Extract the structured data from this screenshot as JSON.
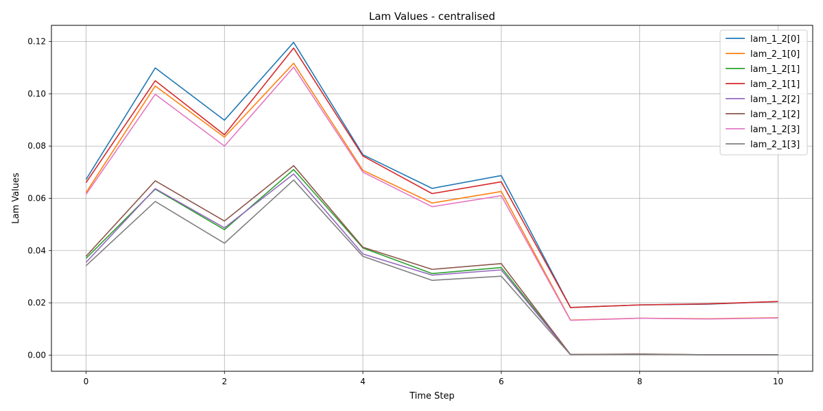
{
  "chart_data": {
    "type": "line",
    "title": "Lam Values - centralised",
    "xlabel": "Time Step",
    "ylabel": "Lam Values",
    "xlim": [
      -0.5,
      10.5
    ],
    "ylim": [
      -0.0062,
      0.1262
    ],
    "xticks": [
      0,
      2,
      4,
      6,
      8,
      10
    ],
    "yticks": [
      0.0,
      0.02,
      0.04,
      0.06,
      0.08,
      0.1,
      0.12
    ],
    "ytick_labels": [
      "0.00",
      "0.02",
      "0.04",
      "0.06",
      "0.08",
      "0.10",
      "0.12"
    ],
    "grid": true,
    "legend_position": "top-right",
    "x": [
      0,
      1,
      2,
      3,
      4,
      5,
      6,
      7,
      8,
      9,
      10
    ],
    "series": [
      {
        "name": "lam_1_2[0]",
        "color": "#1f77b4",
        "values": [
          0.0672,
          0.1099,
          0.0899,
          0.1197,
          0.0767,
          0.0638,
          0.0687,
          0.0182,
          0.0192,
          0.0195,
          0.0205
        ]
      },
      {
        "name": "lam_2_1[0]",
        "color": "#ff7f0e",
        "values": [
          0.0622,
          0.103,
          0.0834,
          0.1117,
          0.0707,
          0.0582,
          0.0626,
          0.0134,
          0.0141,
          0.0139,
          0.0143
        ]
      },
      {
        "name": "lam_1_2[1]",
        "color": "#2ca02c",
        "values": [
          0.037,
          0.0635,
          0.048,
          0.071,
          0.041,
          0.0312,
          0.0335,
          0.0002,
          0.0003,
          0.0001,
          0.0001
        ]
      },
      {
        "name": "lam_2_1[1]",
        "color": "#d62728",
        "values": [
          0.066,
          0.105,
          0.0843,
          0.1175,
          0.0762,
          0.0618,
          0.0663,
          0.0182,
          0.0192,
          0.0196,
          0.0205
        ]
      },
      {
        "name": "lam_1_2[2]",
        "color": "#9467bd",
        "values": [
          0.0355,
          0.0637,
          0.0487,
          0.0693,
          0.0387,
          0.0306,
          0.0326,
          0.0002,
          0.0003,
          0.0001,
          0.0001
        ]
      },
      {
        "name": "lam_2_1[2]",
        "color": "#8c564b",
        "values": [
          0.0378,
          0.0667,
          0.0513,
          0.0725,
          0.0413,
          0.0328,
          0.035,
          0.0002,
          0.0004,
          0.0001,
          0.0001
        ]
      },
      {
        "name": "lam_1_2[3]",
        "color": "#e377c2",
        "values": [
          0.0615,
          0.0998,
          0.08,
          0.1102,
          0.07,
          0.0568,
          0.061,
          0.0133,
          0.0141,
          0.0138,
          0.0142
        ]
      },
      {
        "name": "lam_2_1[3]",
        "color": "#7f7f7f",
        "values": [
          0.0342,
          0.0588,
          0.0428,
          0.067,
          0.0378,
          0.0286,
          0.0302,
          0.0001,
          0.0002,
          0.0001,
          0.0001
        ]
      }
    ]
  }
}
